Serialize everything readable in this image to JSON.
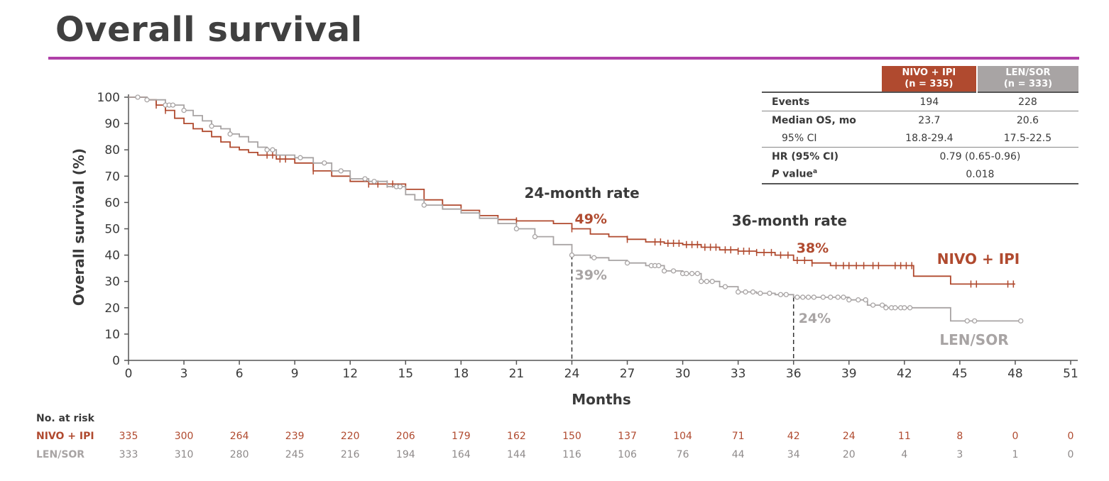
{
  "page": {
    "title": "Overall survival"
  },
  "table": {
    "headers": [
      {
        "line1": "NIVO + IPI",
        "line2": "(n = 335)"
      },
      {
        "line1": "LEN/SOR",
        "line2": "(n = 333)"
      }
    ],
    "events": {
      "label": "Events",
      "nivo": "194",
      "len": "228"
    },
    "median": {
      "label": "Median OS, mo",
      "nivo": "23.7",
      "len": "20.6"
    },
    "ci": {
      "label": "95% CI",
      "nivo": "18.8-29.4",
      "len": "17.5-22.5"
    },
    "hr": {
      "label": "HR (95% CI)",
      "value": "0.79 (0.65-0.96)"
    },
    "pvalue": {
      "label_italic": "P",
      "label_rest": " value",
      "sup": "a",
      "value": "0.018"
    }
  },
  "risk": {
    "heading": "No. at risk",
    "nivo_label": "NIVO + IPI",
    "len_label": "LEN/SOR",
    "nivo": [
      "335",
      "300",
      "264",
      "239",
      "220",
      "206",
      "179",
      "162",
      "150",
      "137",
      "104",
      "71",
      "42",
      "24",
      "11",
      "8",
      "0",
      "0"
    ],
    "len": [
      "333",
      "310",
      "280",
      "245",
      "216",
      "194",
      "164",
      "144",
      "116",
      "106",
      "76",
      "44",
      "34",
      "20",
      "4",
      "3",
      "1",
      "0"
    ]
  },
  "chart_data": {
    "type": "line",
    "xlabel": "Months",
    "ylabel": "Overall survival (%)",
    "xlim": [
      0,
      51
    ],
    "ylim": [
      0,
      100
    ],
    "xticks": [
      0,
      3,
      6,
      9,
      12,
      15,
      18,
      21,
      24,
      27,
      30,
      33,
      36,
      39,
      42,
      45,
      48,
      51
    ],
    "yticks": [
      0,
      10,
      20,
      30,
      40,
      50,
      60,
      70,
      80,
      90,
      100
    ],
    "colors": {
      "nivo": "#b04a2f",
      "len": "#a8a4a4",
      "text": "#3a3a3a"
    },
    "series": [
      {
        "name": "NIVO + IPI",
        "x": [
          0,
          1,
          1.5,
          2,
          2.5,
          3,
          3.5,
          4,
          4.5,
          5,
          5.5,
          6,
          6.5,
          7,
          8,
          9,
          10,
          11,
          12,
          13,
          14,
          15,
          16,
          17,
          18,
          19,
          20,
          21,
          22,
          23,
          24,
          25,
          26,
          27,
          28,
          29,
          30,
          31,
          32,
          33,
          34,
          35,
          36,
          37,
          38,
          39,
          40,
          41,
          42,
          42.5,
          44.5,
          48
        ],
        "y": [
          100,
          99,
          97,
          95,
          92,
          90,
          88,
          87,
          85,
          83,
          81,
          80,
          79,
          78,
          76.5,
          75,
          72,
          70,
          68,
          67,
          67,
          65,
          61,
          59,
          57,
          55,
          53.5,
          53,
          53,
          52,
          50,
          48,
          47,
          46,
          45,
          44.5,
          44,
          43,
          42,
          41.5,
          41,
          40,
          38,
          37,
          36,
          36,
          36,
          36,
          36,
          32,
          29,
          29
        ],
        "censor_x": [
          1.5,
          2,
          7.5,
          7.8,
          8.2,
          8.5,
          10,
          13,
          13.5,
          14,
          14.3,
          17,
          21,
          24,
          27,
          28.5,
          28.8,
          29.2,
          29.5,
          29.8,
          30.2,
          30.5,
          30.8,
          31.2,
          31.5,
          31.8,
          32.3,
          32.6,
          33,
          33.3,
          33.6,
          34,
          34.4,
          34.8,
          35.3,
          35.7,
          36.2,
          36.6,
          37,
          38.3,
          38.7,
          39,
          39.4,
          39.8,
          40.3,
          40.6,
          41.5,
          41.8,
          42.1,
          42.4,
          45.6,
          45.9,
          47.6,
          47.9
        ],
        "rate_labels": [
          {
            "x": 24,
            "text": "49%"
          },
          {
            "x": 36,
            "text": "38%"
          }
        ],
        "end_label": "NIVO + IPI"
      },
      {
        "name": "LEN/SOR",
        "x": [
          0,
          1,
          2,
          3,
          3.5,
          4,
          4.5,
          5,
          5.5,
          6,
          6.5,
          7,
          7.5,
          8,
          9,
          10,
          11,
          12,
          13,
          14,
          15,
          15.5,
          16,
          17,
          18,
          19,
          20,
          21,
          22,
          23,
          24,
          25,
          26,
          27,
          28,
          29,
          30,
          31,
          32,
          33,
          34,
          35,
          36,
          37,
          38,
          39,
          40,
          41,
          42,
          43,
          44.5,
          46,
          48.3
        ],
        "y": [
          100,
          99,
          97,
          95,
          93,
          91,
          89,
          88,
          86,
          85,
          83,
          81,
          80,
          78,
          77,
          75,
          72,
          69,
          68,
          66,
          63,
          61,
          59,
          57.5,
          56,
          54,
          52,
          50,
          47,
          44,
          40,
          39,
          38,
          37,
          36,
          34,
          33,
          30,
          28,
          26,
          25.5,
          25,
          24,
          24,
          24,
          23,
          21,
          20,
          20,
          20,
          15,
          15,
          15
        ],
        "censor_x": [
          0.5,
          1,
          2,
          2.2,
          2.4,
          3,
          4.5,
          5.5,
          7.5,
          7.8,
          9.3,
          10.6,
          11.5,
          12.8,
          13.3,
          14.5,
          14.7,
          16,
          21,
          22,
          24,
          25.2,
          27,
          28.3,
          28.5,
          28.7,
          29,
          29.5,
          30,
          30.2,
          30.5,
          30.8,
          31,
          31.3,
          31.6,
          32.3,
          33,
          33.4,
          33.8,
          34.2,
          34.7,
          35.3,
          35.6,
          36.2,
          36.5,
          36.8,
          37.1,
          37.6,
          38,
          38.4,
          38.7,
          39,
          39.5,
          39.9,
          40.3,
          40.8,
          41,
          41.3,
          41.5,
          41.8,
          42,
          42.3,
          45.4,
          45.8,
          48.3
        ],
        "rate_labels": [
          {
            "x": 24,
            "text": "39%"
          },
          {
            "x": 36,
            "text": "24%"
          }
        ],
        "end_label": "LEN/SOR"
      }
    ],
    "annotations": [
      {
        "x": 24,
        "title": "24-month rate"
      },
      {
        "x": 36,
        "title": "36-month rate"
      }
    ]
  }
}
